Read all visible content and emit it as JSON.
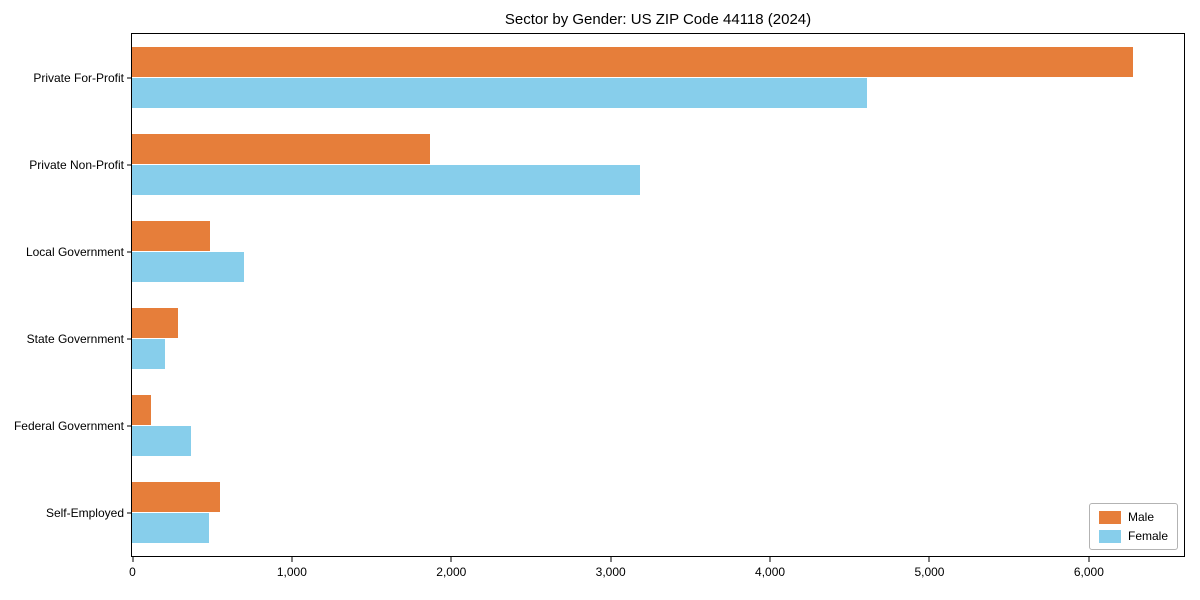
{
  "chart_data": {
    "type": "bar",
    "orientation": "horizontal",
    "title": "Sector by Gender: US ZIP Code 44118 (2024)",
    "categories": [
      "Private For-Profit",
      "Private Non-Profit",
      "Local Government",
      "State Government",
      "Federal Government",
      "Self-Employed"
    ],
    "series": [
      {
        "name": "Male",
        "color": "#E67E3A",
        "values": [
          6280,
          1870,
          490,
          290,
          120,
          550
        ]
      },
      {
        "name": "Female",
        "color": "#87CEEB",
        "values": [
          4610,
          3190,
          700,
          210,
          370,
          480
        ]
      }
    ],
    "xlim": [
      0,
      6600
    ],
    "xticks": [
      0,
      1000,
      2000,
      3000,
      4000,
      5000,
      6000
    ],
    "xtick_labels": [
      "0",
      "1,000",
      "2,000",
      "3,000",
      "4,000",
      "5,000",
      "6,000"
    ],
    "grid": false,
    "legend": {
      "position": "lower right",
      "entries": [
        "Male",
        "Female"
      ]
    }
  }
}
